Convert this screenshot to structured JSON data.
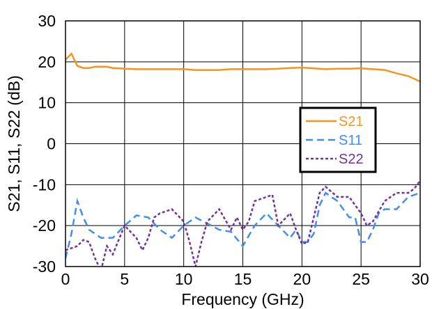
{
  "chart_data": {
    "type": "line",
    "title": "",
    "xlabel": "Frequency (GHz)",
    "ylabel": "S21, S11, S22 (dB)",
    "xlim": [
      0,
      30
    ],
    "ylim": [
      -30,
      30
    ],
    "xticks": [
      "0",
      "5",
      "10",
      "15",
      "20",
      "25",
      "30"
    ],
    "yticks": [
      "30",
      "20",
      "10",
      "0",
      "-10",
      "-20",
      "-30"
    ],
    "grid": true,
    "legend_position": "center-right",
    "series": [
      {
        "name": "S21",
        "color": "#F7941D",
        "dash": "solid",
        "x": [
          0,
          0.5,
          1,
          1.5,
          2,
          2.5,
          3,
          3.5,
          4,
          5,
          6,
          7,
          8,
          9,
          10,
          11,
          12,
          13,
          14,
          15,
          16,
          17,
          18,
          19,
          20,
          21,
          22,
          23,
          24,
          25,
          26,
          27,
          28,
          29,
          30
        ],
        "y": [
          20.5,
          22,
          19,
          18.5,
          18.5,
          18.8,
          18.8,
          18.8,
          18.5,
          18.3,
          18.2,
          18.2,
          18.2,
          18.2,
          18.2,
          18.0,
          18.0,
          18.0,
          18.2,
          18.2,
          18.2,
          18.2,
          18.3,
          18.5,
          18.6,
          18.4,
          18.2,
          18.3,
          18.3,
          18.4,
          18.2,
          18.0,
          17.2,
          16.5,
          15.2
        ]
      },
      {
        "name": "S11",
        "color": "#3F8EF0",
        "dash": "dashed",
        "x": [
          0,
          0.5,
          1,
          1.5,
          2,
          3,
          4,
          5,
          6,
          7,
          8,
          9,
          10,
          11,
          12,
          13,
          14,
          15,
          16,
          17,
          18,
          19,
          19.5,
          20,
          20.5,
          21,
          21.5,
          22,
          23,
          24,
          24.5,
          25,
          25.5,
          26,
          26.5,
          27,
          28,
          29,
          30
        ],
        "y": [
          -28,
          -22,
          -14,
          -18,
          -21,
          -23,
          -23,
          -20,
          -17.5,
          -18,
          -21,
          -23,
          -20,
          -18,
          -19.5,
          -21,
          -21.5,
          -25,
          -20,
          -17,
          -20,
          -23,
          -21,
          -24,
          -24,
          -22,
          -15,
          -12,
          -14,
          -18,
          -18,
          -24,
          -24,
          -21,
          -17,
          -16,
          -16,
          -13,
          -12
        ]
      },
      {
        "name": "S22",
        "color": "#7030A0",
        "dash": "dotted",
        "x": [
          0,
          1,
          1.5,
          2,
          2.5,
          3,
          3.5,
          4,
          5,
          6,
          6.5,
          7,
          7.5,
          8,
          9,
          10,
          10.5,
          11,
          11.5,
          12,
          13,
          14,
          14.5,
          15,
          15.5,
          16,
          17,
          17.5,
          18,
          19,
          19.5,
          20,
          20.5,
          21,
          21.5,
          22,
          23,
          24,
          24.5,
          25,
          25.5,
          26,
          27,
          28,
          29,
          29.5,
          30
        ],
        "y": [
          -26,
          -25,
          -23.5,
          -24,
          -28,
          -31,
          -25,
          -27,
          -20,
          -23,
          -26,
          -23,
          -18,
          -17,
          -16,
          -19,
          -24,
          -30,
          -24,
          -19,
          -16,
          -21,
          -18,
          -21,
          -19,
          -14,
          -13,
          -12.5,
          -20,
          -17,
          -21,
          -24.5,
          -24,
          -18,
          -12,
          -10.5,
          -13,
          -13,
          -15,
          -17,
          -20,
          -19,
          -14,
          -12,
          -12,
          -11,
          -9
        ]
      }
    ]
  }
}
